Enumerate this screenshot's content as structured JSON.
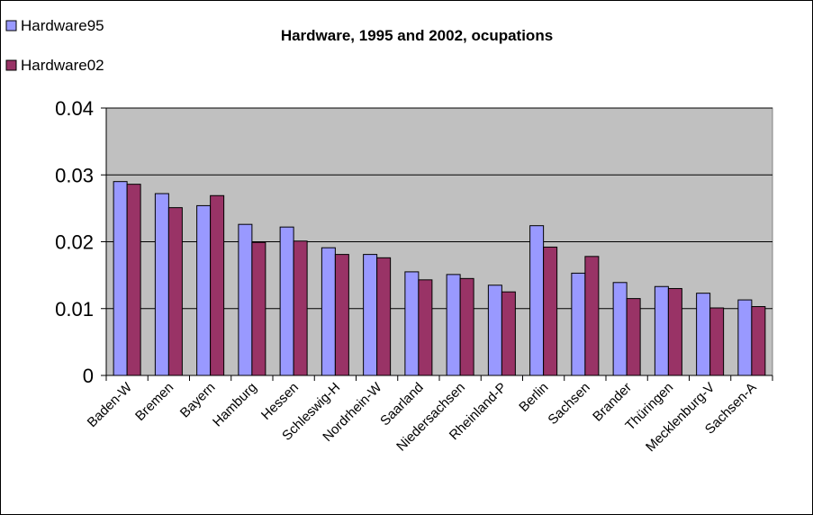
{
  "chart_data": {
    "type": "bar",
    "title": "Hardware, 1995 and 2002, ocupations",
    "xlabel": "",
    "ylabel": "",
    "ylim": [
      0,
      0.04
    ],
    "yticks": [
      "0",
      "0.01",
      "0.02",
      "0.03",
      "0.04"
    ],
    "grid": true,
    "legend_position": "top-left",
    "categories": [
      "Baden-W",
      "Bremen",
      "Bayern",
      "Hamburg",
      "Hessen",
      "Schleswig-H",
      "Nordrhein-W",
      "Saarland",
      "Niedersachsen",
      "Rheinland-P",
      "Berlin",
      "Sachsen",
      "Brander",
      "Thüringen",
      "Mecklenburg-V",
      "Sachsen-A"
    ],
    "series": [
      {
        "name": "Hardware95",
        "color": "#9999ff",
        "values": [
          0.029,
          0.0272,
          0.0254,
          0.0226,
          0.0222,
          0.0191,
          0.0181,
          0.0155,
          0.0151,
          0.0135,
          0.0224,
          0.0153,
          0.0139,
          0.0133,
          0.0123,
          0.0113
        ]
      },
      {
        "name": "Hardware02",
        "color": "#993366",
        "values": [
          0.0286,
          0.0251,
          0.0269,
          0.0199,
          0.0201,
          0.0181,
          0.0176,
          0.0143,
          0.0145,
          0.0125,
          0.0192,
          0.0178,
          0.0115,
          0.013,
          0.0101,
          0.0103
        ]
      }
    ],
    "plot_background": "#c0c0c0"
  }
}
